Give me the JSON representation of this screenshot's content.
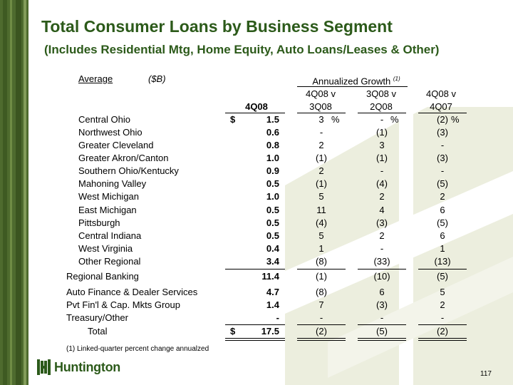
{
  "title": "Total Consumer Loans by Business Segment",
  "subtitle": "(Includes Residential Mtg, Home Equity, Auto Loans/Leases & Other)",
  "header": {
    "average_label": "Average",
    "unit_label": "($B)",
    "growth_label": "Annualized Growth",
    "growth_footnote_mark": "(1)",
    "col_4q08": "4Q08",
    "col_a_line1": "4Q08 v",
    "col_a_line2": "3Q08",
    "col_b_line1": "3Q08 v",
    "col_b_line2": "2Q08",
    "col_c_line1": "4Q08 v",
    "col_c_line2": "4Q07"
  },
  "rows": [
    {
      "label": "Central Ohio",
      "dollar": "$",
      "value": "1.5",
      "a": "3",
      "a_pct": "%",
      "b": "-",
      "b_pct": "%",
      "c": "(2)",
      "c_pct": "%"
    },
    {
      "label": "Northwest Ohio",
      "dollar": "",
      "value": "0.6",
      "a": "-",
      "b": "(1)",
      "c": "(3)"
    },
    {
      "label": "Greater Cleveland",
      "dollar": "",
      "value": "0.8",
      "a": "2",
      "b": "3",
      "c": "-"
    },
    {
      "label": "Greater Akron/Canton",
      "dollar": "",
      "value": "1.0",
      "a": "(1)",
      "b": "(1)",
      "c": "(3)"
    },
    {
      "label": "Southern Ohio/Kentucky",
      "dollar": "",
      "value": "0.9",
      "a": "2",
      "b": "-",
      "c": "-"
    },
    {
      "label": "Mahoning Valley",
      "dollar": "",
      "value": "0.5",
      "a": "(1)",
      "b": "(4)",
      "c": "(5)"
    },
    {
      "label": "West Michigan",
      "dollar": "",
      "value": "1.0",
      "a": "5",
      "b": "2",
      "c": "2"
    },
    {
      "label": "East Michigan",
      "dollar": "",
      "value": "0.5",
      "a": "11",
      "b": "4",
      "c": "6"
    },
    {
      "label": "Pittsburgh",
      "dollar": "",
      "value": "0.5",
      "a": "(4)",
      "b": "(3)",
      "c": "(5)"
    },
    {
      "label": "Central Indiana",
      "dollar": "",
      "value": "0.5",
      "a": "5",
      "b": "2",
      "c": "6"
    },
    {
      "label": "West Virginia",
      "dollar": "",
      "value": "0.4",
      "a": "1",
      "b": "-",
      "c": "1"
    },
    {
      "label": "Other Regional",
      "dollar": "",
      "value": "3.4",
      "a": "(8)",
      "b": "(33)",
      "c": "(13)"
    },
    {
      "label": "Regional Banking",
      "dollar": "",
      "value": "11.4",
      "a": "(1)",
      "b": "(10)",
      "c": "(5)"
    },
    {
      "label": "Auto Finance & Dealer Services",
      "dollar": "",
      "value": "4.7",
      "a": "(8)",
      "b": "6",
      "c": "5"
    },
    {
      "label": "Pvt Fin'l & Cap. Mkts Group",
      "dollar": "",
      "value": "1.4",
      "a": "7",
      "b": "(3)",
      "c": "2"
    },
    {
      "label": "Treasury/Other",
      "dollar": "",
      "value": "-",
      "a": "-",
      "b": "-",
      "c": "-"
    },
    {
      "label": "Total",
      "dollar": "$",
      "value": "17.5",
      "a": "(2)",
      "b": "(5)",
      "c": "(2)"
    }
  ],
  "footnote": "(1)  Linked-quarter percent change annualzed",
  "logo_text": "Huntington",
  "page_number": "117",
  "colors": {
    "title_green": "#2c5a1a",
    "bar_green": "#4e6b2e",
    "watermark": "#e9ecd8"
  }
}
